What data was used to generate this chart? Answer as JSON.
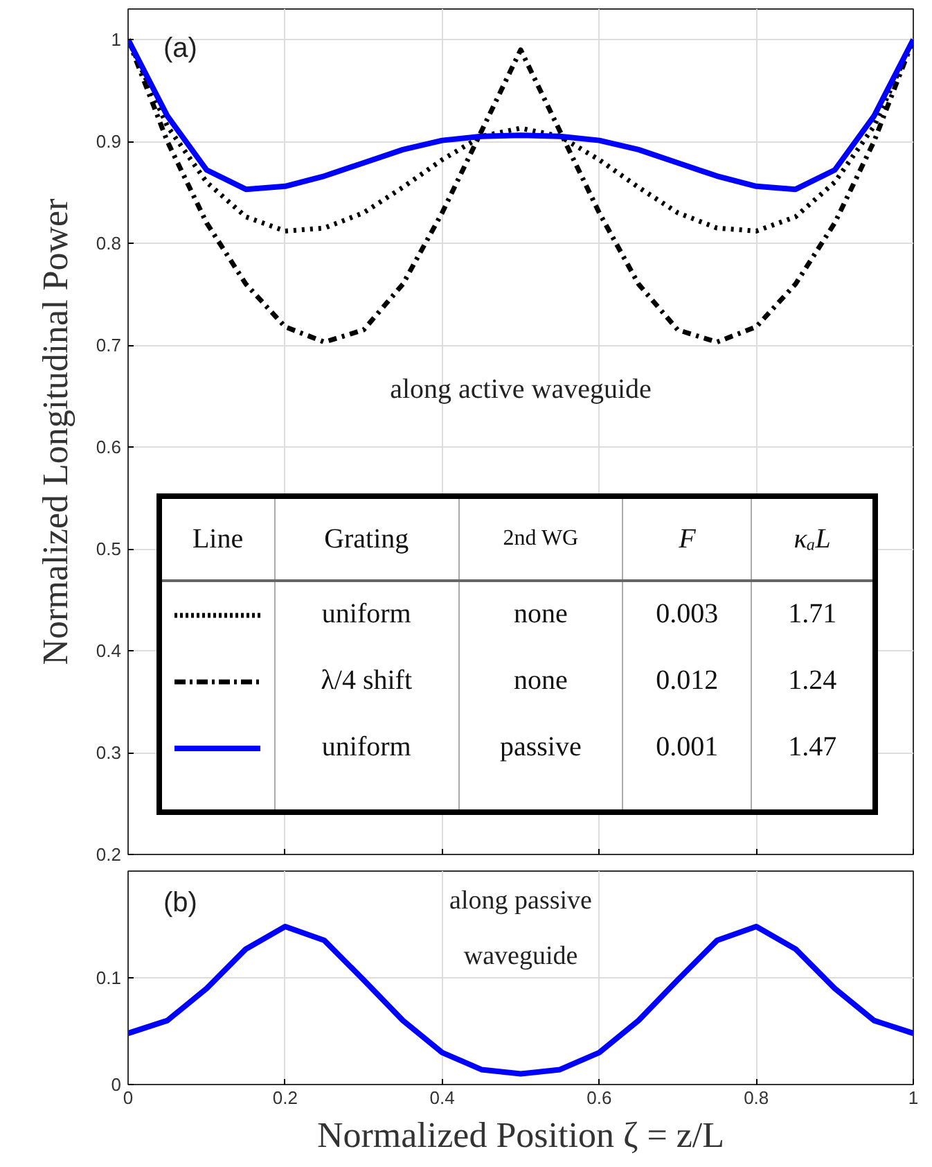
{
  "chart_data": [
    {
      "type": "line",
      "ylabel": "Normalized Longitudinal Power",
      "xlim": [
        0,
        1
      ],
      "ylim": [
        0.2,
        1.03
      ],
      "xticks": [
        0,
        0.2,
        0.4,
        0.6,
        0.8,
        1
      ],
      "yticks": [
        0.2,
        0.3,
        0.4,
        0.5,
        0.6,
        0.7,
        0.8,
        0.9,
        1
      ],
      "grid": true,
      "tick_labels": "y",
      "x": [
        0,
        0.05,
        0.1,
        0.15,
        0.2,
        0.25,
        0.3,
        0.35,
        0.4,
        0.45,
        0.5,
        0.55,
        0.6,
        0.65,
        0.7,
        0.75,
        0.8,
        0.85,
        0.9,
        0.95,
        1
      ],
      "series": [
        {
          "color": "#000000",
          "line_style": "dotted",
          "values": [
            1.0,
            0.915,
            0.86,
            0.826,
            0.812,
            0.815,
            0.83,
            0.855,
            0.882,
            0.905,
            0.913,
            0.905,
            0.882,
            0.855,
            0.83,
            0.815,
            0.812,
            0.826,
            0.86,
            0.915,
            1.0
          ]
        },
        {
          "color": "#000000",
          "line_style": "dashdot",
          "values": [
            1.0,
            0.9,
            0.82,
            0.76,
            0.718,
            0.703,
            0.715,
            0.76,
            0.83,
            0.91,
            0.99,
            0.91,
            0.83,
            0.76,
            0.715,
            0.703,
            0.718,
            0.76,
            0.82,
            0.9,
            1.0
          ]
        },
        {
          "color": "#0000ff",
          "line_style": "solid",
          "values": [
            1.0,
            0.925,
            0.872,
            0.853,
            0.856,
            0.866,
            0.879,
            0.892,
            0.901,
            0.905,
            0.906,
            0.905,
            0.901,
            0.892,
            0.879,
            0.866,
            0.856,
            0.853,
            0.872,
            0.925,
            1.0
          ]
        }
      ],
      "annotations": [
        "(a)",
        "along active waveguide",
        "Line",
        "Grating",
        "2nd WG",
        "F",
        "κₐL",
        "uniform",
        "none",
        "0.003",
        "1.71",
        "λ/4 shift",
        "none",
        "0.012",
        "1.24",
        "uniform",
        "passive",
        "0.001",
        "1.47"
      ]
    },
    {
      "type": "line",
      "xlabel": "Normalized Position ζ = z/L",
      "xlim": [
        0,
        1
      ],
      "ylim": [
        0,
        0.2
      ],
      "xticks": [
        0,
        0.2,
        0.4,
        0.6,
        0.8,
        1
      ],
      "yticks": [
        0,
        0.1
      ],
      "grid": true,
      "x": [
        0,
        0.05,
        0.1,
        0.15,
        0.2,
        0.25,
        0.3,
        0.35,
        0.4,
        0.45,
        0.5,
        0.55,
        0.6,
        0.65,
        0.7,
        0.75,
        0.8,
        0.85,
        0.9,
        0.95,
        1
      ],
      "series": [
        {
          "color": "#0000ff",
          "line_style": "solid",
          "values": [
            0.048,
            0.06,
            0.09,
            0.127,
            0.148,
            0.135,
            0.098,
            0.06,
            0.03,
            0.014,
            0.01,
            0.014,
            0.03,
            0.06,
            0.098,
            0.135,
            0.148,
            0.127,
            0.09,
            0.06,
            0.048
          ]
        }
      ],
      "annotations": [
        "(b)",
        "along passive waveguide"
      ]
    }
  ]
}
